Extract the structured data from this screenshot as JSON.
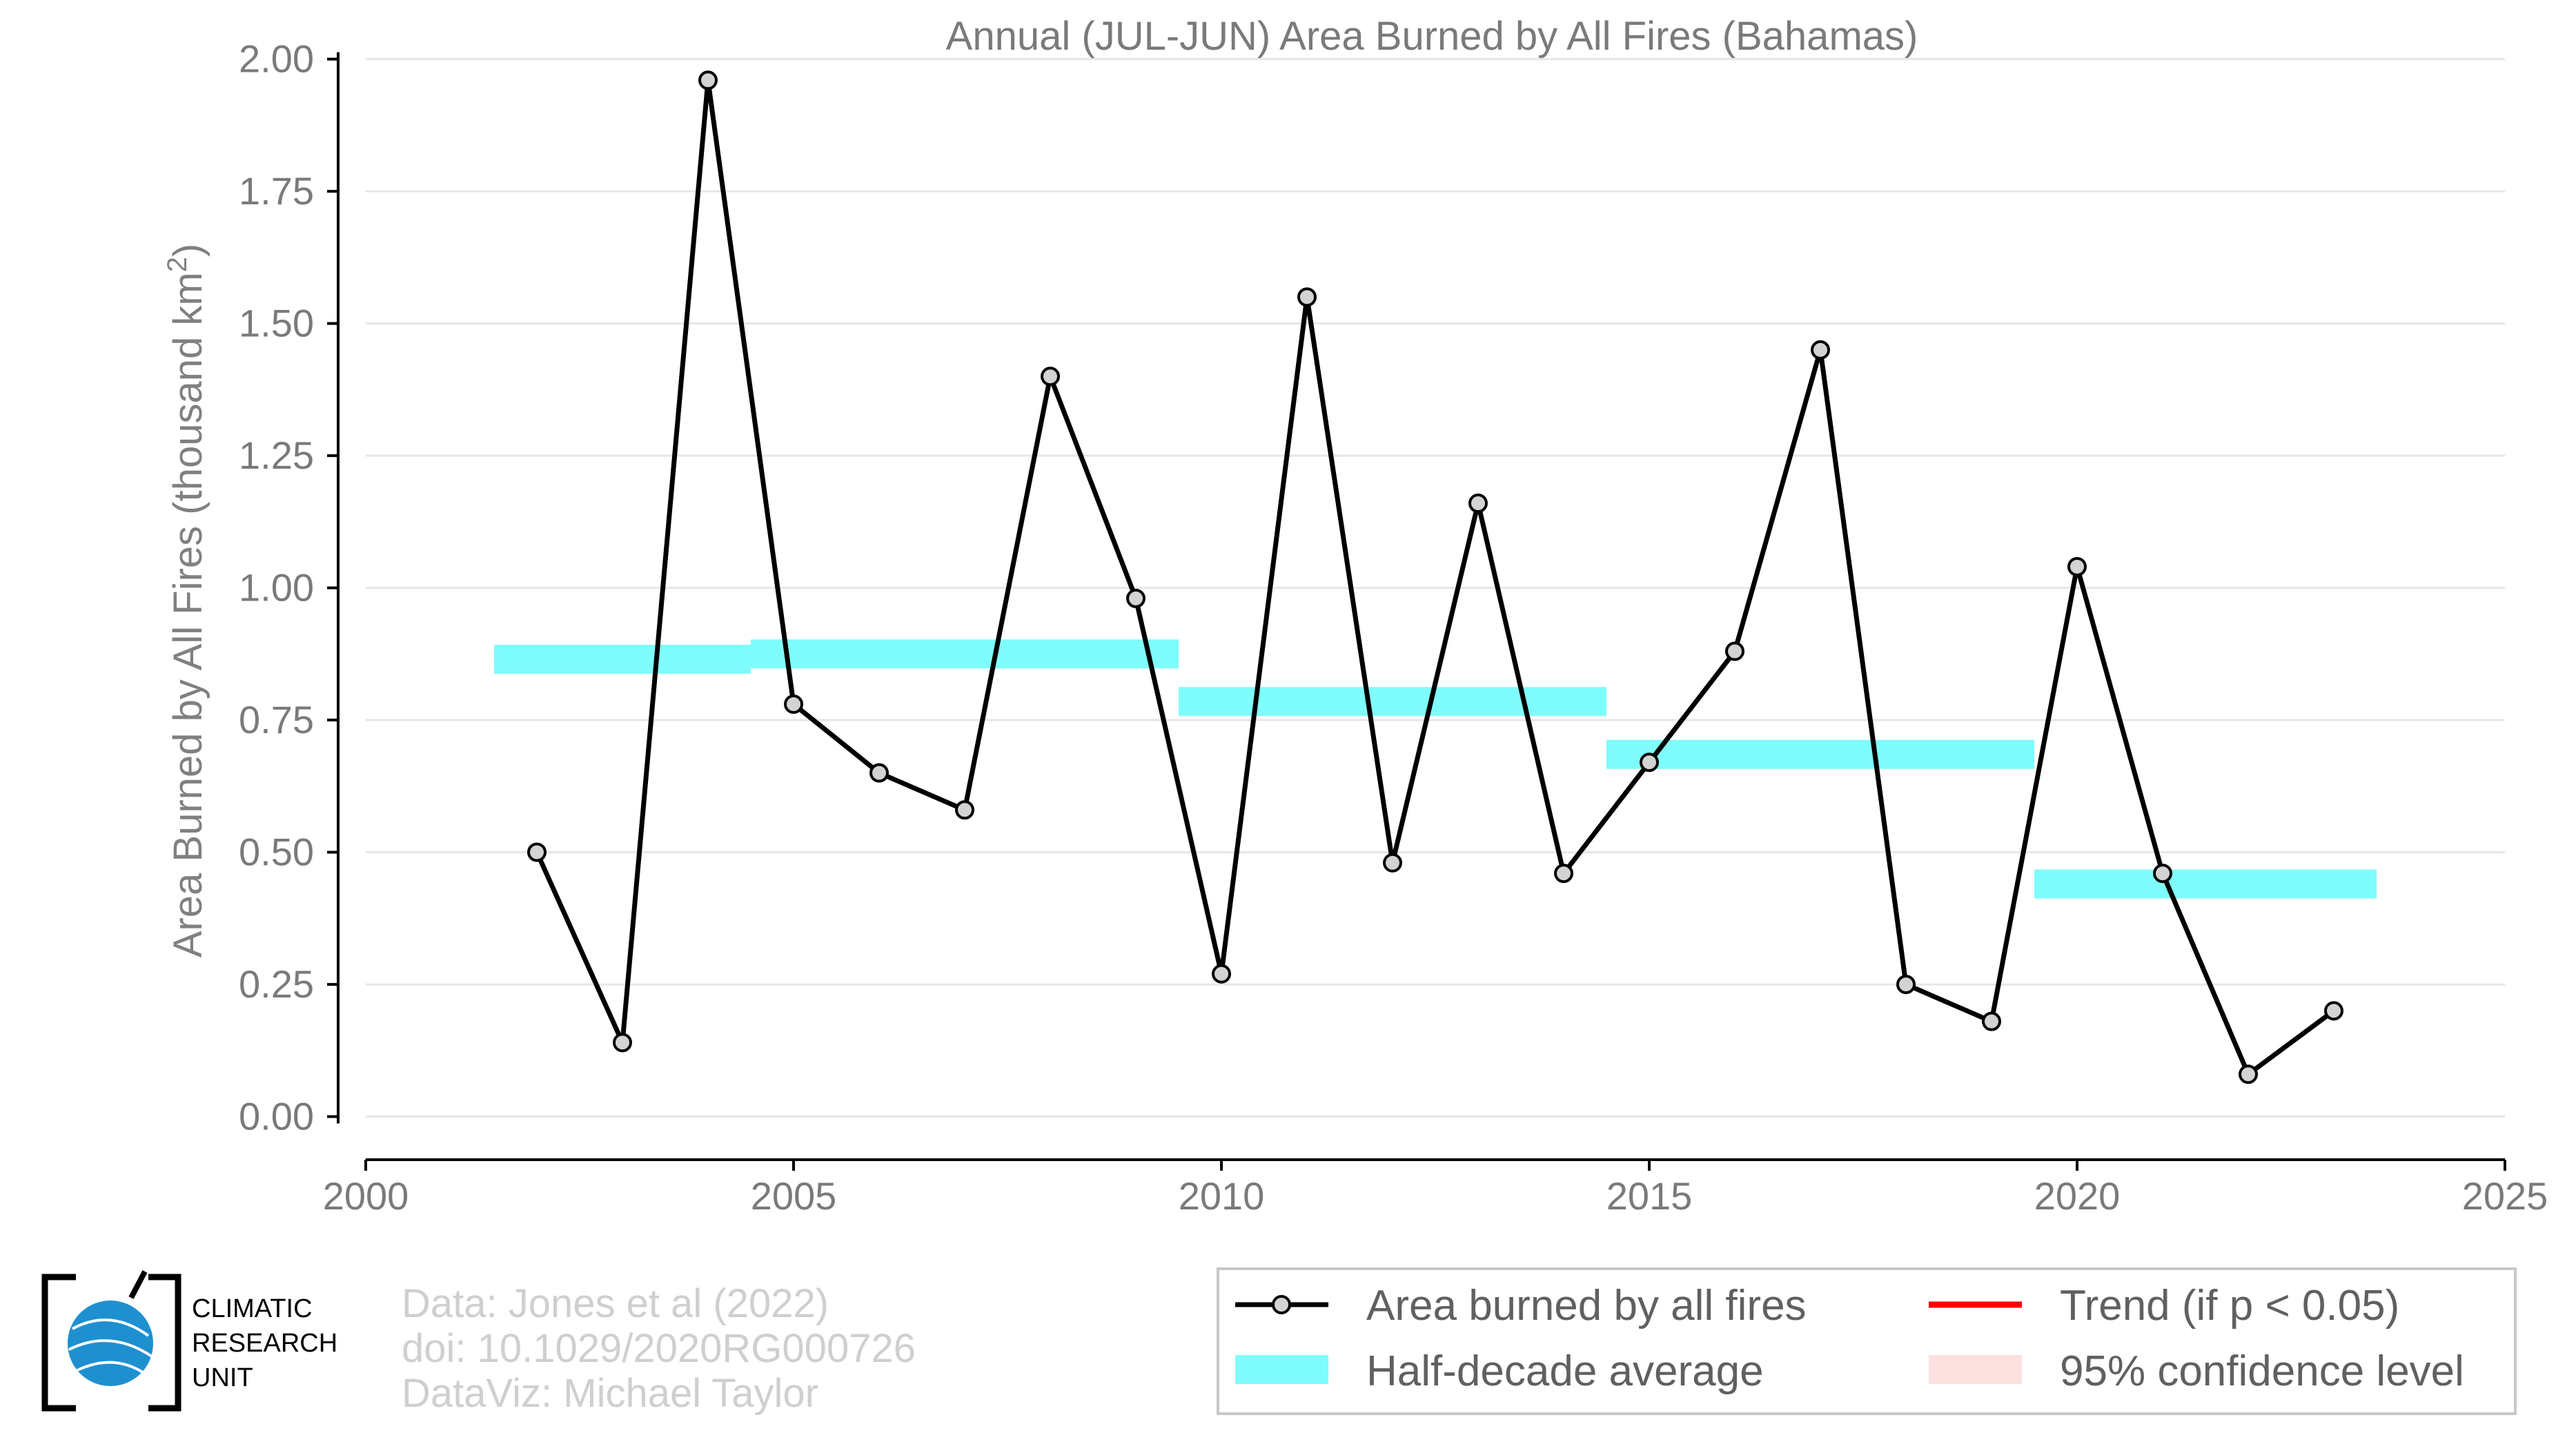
{
  "chart_data": {
    "type": "line",
    "title": "Annual (JUL-JUN) Area Burned by All Fires (Bahamas)",
    "ylabel": "Area Burned by All Fires (thousand km",
    "ylabel_sup": "2",
    "ylabel_close": ")",
    "xlim": [
      2000,
      2025
    ],
    "ylim": [
      -0.075,
      2.04
    ],
    "x_ticks": [
      2000,
      2005,
      2010,
      2015,
      2020,
      2025
    ],
    "y_ticks": [
      "0.00",
      "0.25",
      "0.50",
      "0.75",
      "1.00",
      "1.25",
      "1.50",
      "1.75",
      "2.00"
    ],
    "grid": "horizontal",
    "series": [
      {
        "name": "Area burned by all fires",
        "color": "#000000",
        "marker_fill": "#d3d3d3",
        "x": [
          2002,
          2003,
          2004,
          2005,
          2006,
          2007,
          2008,
          2009,
          2010,
          2011,
          2012,
          2013,
          2014,
          2015,
          2016,
          2017,
          2018,
          2019,
          2020,
          2021,
          2022,
          2023
        ],
        "y": [
          0.5,
          0.14,
          1.96,
          0.78,
          0.65,
          0.58,
          1.4,
          0.98,
          0.27,
          1.55,
          0.48,
          1.16,
          0.46,
          0.67,
          0.88,
          1.45,
          0.25,
          0.18,
          1.04,
          0.46,
          0.08,
          0.2
        ]
      }
    ],
    "half_decade_average": {
      "name": "Half-decade average",
      "color": "#7ffcfc",
      "segments": [
        {
          "x0": 2001.5,
          "x1": 2004.5,
          "y": 0.865
        },
        {
          "x0": 2004.5,
          "x1": 2009.5,
          "y": 0.875
        },
        {
          "x0": 2009.5,
          "x1": 2014.5,
          "y": 0.785
        },
        {
          "x0": 2014.5,
          "x1": 2019.5,
          "y": 0.685
        },
        {
          "x0": 2019.5,
          "x1": 2023.5,
          "y": 0.44
        }
      ]
    },
    "legend": {
      "placement": "bottom-right",
      "entries": [
        {
          "label": "Area burned by all fires",
          "kind": "line-marker",
          "color": "#000000"
        },
        {
          "label": "Trend (if p < 0.05)",
          "kind": "line",
          "color": "#ff0000"
        },
        {
          "label": "Half-decade average",
          "kind": "band",
          "color": "#7ffcfc"
        },
        {
          "label": "95% confidence level",
          "kind": "band",
          "color": "#fde0e0"
        }
      ]
    }
  },
  "credits": {
    "line1": "Data: Jones et al (2022)",
    "line2": "doi: 10.1029/2020RG000726",
    "line3": "DataViz: Michael Taylor"
  },
  "logo": {
    "line1": "CLIMATIC",
    "line2": "RESEARCH",
    "line3": "UNIT",
    "globe_color": "#1e90d0"
  }
}
